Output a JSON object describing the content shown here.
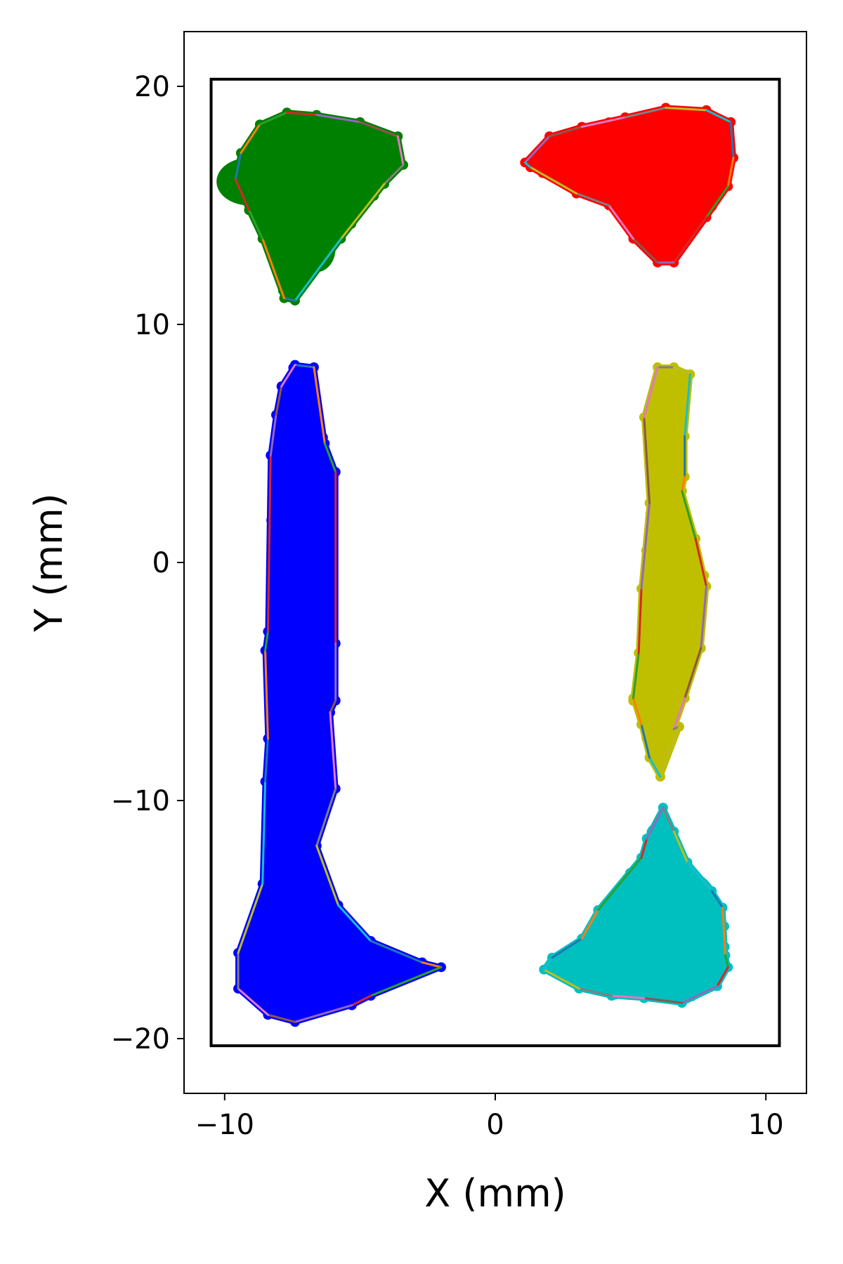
{
  "chart_data": {
    "type": "scatter",
    "title": "",
    "xlabel": "X (mm)",
    "ylabel": "Y (mm)",
    "xlim": [
      -11.5,
      11.5
    ],
    "ylim": [
      -22.3,
      22.3
    ],
    "xticks": [
      -10,
      0,
      10
    ],
    "yticks": [
      -20,
      -10,
      0,
      10,
      20
    ],
    "xtick_labels": [
      "−10",
      "0",
      "10"
    ],
    "ytick_labels": [
      "−20",
      "−10",
      "0",
      "10",
      "20"
    ],
    "grid": false,
    "legend": "none",
    "boundary_rect": {
      "x": [
        -10.5,
        10.5
      ],
      "y": [
        -20.3,
        20.3
      ],
      "color": "#000000"
    },
    "hull_segment_colors": [
      "#1f77b4",
      "#ff7f0e",
      "#2ca02c",
      "#d62728",
      "#9467bd",
      "#8c564b",
      "#e377c2",
      "#7f7f7f",
      "#bcbd22",
      "#17becf"
    ],
    "clusters": [
      {
        "color": "#008000",
        "hull": [
          [
            -9.6,
            16.1
          ],
          [
            -9.4,
            17.2
          ],
          [
            -8.7,
            18.4
          ],
          [
            -7.7,
            18.9
          ],
          [
            -6.6,
            18.8
          ],
          [
            -5.0,
            18.5
          ],
          [
            -3.6,
            17.9
          ],
          [
            -3.4,
            16.7
          ],
          [
            -4.1,
            15.9
          ],
          [
            -5.7,
            13.6
          ],
          [
            -7.4,
            11.0
          ],
          [
            -7.8,
            11.1
          ],
          [
            -8.6,
            13.6
          ],
          [
            -9.1,
            14.8
          ]
        ],
        "density": [
          [
            -9.1,
            16.0,
            1.2,
            1.0
          ],
          [
            -7.7,
            16.8,
            1.8,
            1.5
          ],
          [
            -6.0,
            16.8,
            1.5,
            1.2
          ],
          [
            -4.2,
            17.0,
            0.6,
            0.5
          ],
          [
            -7.5,
            14.2,
            0.8,
            1.2
          ],
          [
            -6.6,
            13.2,
            0.7,
            1.0
          ]
        ]
      },
      {
        "color": "#ff0000",
        "hull": [
          [
            1.1,
            16.8
          ],
          [
            2.0,
            17.9
          ],
          [
            3.2,
            18.3
          ],
          [
            4.8,
            18.7
          ],
          [
            6.3,
            19.1
          ],
          [
            7.8,
            19.0
          ],
          [
            8.7,
            18.5
          ],
          [
            8.8,
            17.0
          ],
          [
            8.6,
            15.8
          ],
          [
            7.8,
            14.5
          ],
          [
            6.6,
            12.6
          ],
          [
            6.0,
            12.6
          ],
          [
            5.1,
            13.6
          ],
          [
            4.2,
            15.0
          ],
          [
            3.0,
            15.5
          ],
          [
            1.3,
            16.6
          ]
        ],
        "density": [
          [
            2.8,
            17.3,
            0.8,
            0.6
          ],
          [
            4.8,
            17.5,
            1.6,
            0.9
          ],
          [
            7.0,
            17.5,
            1.6,
            1.4
          ],
          [
            6.6,
            15.0,
            0.8,
            1.2
          ],
          [
            6.2,
            13.4,
            0.5,
            0.8
          ]
        ]
      },
      {
        "color": "#0000ff",
        "hull": [
          [
            -7.4,
            8.3
          ],
          [
            -6.7,
            8.2
          ],
          [
            -6.3,
            5.0
          ],
          [
            -5.9,
            3.8
          ],
          [
            -5.9,
            -3.4
          ],
          [
            -5.9,
            -5.8
          ],
          [
            -6.1,
            -6.3
          ],
          [
            -5.9,
            -9.5
          ],
          [
            -6.6,
            -11.9
          ],
          [
            -5.8,
            -14.4
          ],
          [
            -4.6,
            -15.9
          ],
          [
            -2.7,
            -16.8
          ],
          [
            -2.0,
            -17.0
          ],
          [
            -4.6,
            -18.2
          ],
          [
            -5.3,
            -18.6
          ],
          [
            -7.4,
            -19.3
          ],
          [
            -8.4,
            -19.0
          ],
          [
            -9.5,
            -17.9
          ],
          [
            -9.5,
            -16.4
          ],
          [
            -8.6,
            -13.5
          ],
          [
            -8.5,
            -9.2
          ],
          [
            -8.4,
            -7.4
          ],
          [
            -8.5,
            -3.7
          ],
          [
            -8.4,
            -2.9
          ],
          [
            -8.3,
            4.5
          ],
          [
            -8.1,
            6.2
          ],
          [
            -7.9,
            7.4
          ]
        ],
        "density": [
          [
            -7.3,
            5.0,
            0.6,
            2.4
          ],
          [
            -7.2,
            0.5,
            0.8,
            3.0
          ],
          [
            -7.1,
            -4.5,
            0.9,
            3.0
          ],
          [
            -7.3,
            -9.5,
            0.8,
            2.2
          ],
          [
            -7.2,
            -13.5,
            1.0,
            2.2
          ],
          [
            -7.9,
            -16.8,
            1.5,
            1.4
          ],
          [
            -5.8,
            -17.2,
            1.8,
            1.1
          ],
          [
            -3.6,
            -17.0,
            1.0,
            0.4
          ],
          [
            -7.2,
            -18.4,
            1.2,
            0.8
          ]
        ]
      },
      {
        "color": "#bfbf00",
        "hull": [
          [
            6.0,
            8.2
          ],
          [
            6.6,
            8.2
          ],
          [
            7.2,
            7.9
          ],
          [
            7.0,
            5.3
          ],
          [
            7.0,
            3.6
          ],
          [
            6.9,
            3.0
          ],
          [
            7.4,
            1.0
          ],
          [
            7.8,
            -1.0
          ],
          [
            7.6,
            -3.6
          ],
          [
            7.0,
            -5.7
          ],
          [
            6.6,
            -7.0
          ],
          [
            6.8,
            -6.9
          ],
          [
            6.1,
            -9.0
          ],
          [
            5.7,
            -8.2
          ],
          [
            5.4,
            -6.8
          ],
          [
            5.1,
            -5.7
          ],
          [
            5.3,
            -3.8
          ],
          [
            5.4,
            -1.1
          ],
          [
            5.7,
            2.5
          ],
          [
            5.5,
            6.1
          ]
        ],
        "density": [
          [
            6.3,
            6.2,
            0.5,
            1.8
          ],
          [
            6.2,
            2.5,
            0.5,
            2.0
          ],
          [
            6.3,
            -1.5,
            0.9,
            2.2
          ],
          [
            6.2,
            -5.0,
            0.7,
            1.8
          ],
          [
            6.1,
            -7.8,
            0.4,
            0.9
          ]
        ]
      },
      {
        "color": "#00bfbf",
        "hull": [
          [
            6.2,
            -10.3
          ],
          [
            6.6,
            -11.3
          ],
          [
            7.1,
            -12.6
          ],
          [
            8.0,
            -13.8
          ],
          [
            8.4,
            -14.5
          ],
          [
            8.5,
            -16.5
          ],
          [
            8.6,
            -17.0
          ],
          [
            8.2,
            -17.8
          ],
          [
            6.9,
            -18.5
          ],
          [
            5.5,
            -18.3
          ],
          [
            4.3,
            -18.2
          ],
          [
            3.1,
            -17.9
          ],
          [
            1.8,
            -17.1
          ],
          [
            2.1,
            -16.6
          ],
          [
            3.2,
            -15.8
          ],
          [
            3.8,
            -14.6
          ],
          [
            5.4,
            -12.4
          ],
          [
            5.6,
            -11.6
          ]
        ],
        "density": [
          [
            6.1,
            -11.8,
            0.4,
            1.2
          ],
          [
            6.6,
            -14.3,
            1.6,
            1.5
          ],
          [
            5.4,
            -16.7,
            2.6,
            1.3
          ],
          [
            7.5,
            -16.6,
            1.1,
            1.3
          ],
          [
            3.0,
            -17.0,
            0.9,
            0.5
          ]
        ]
      }
    ]
  }
}
